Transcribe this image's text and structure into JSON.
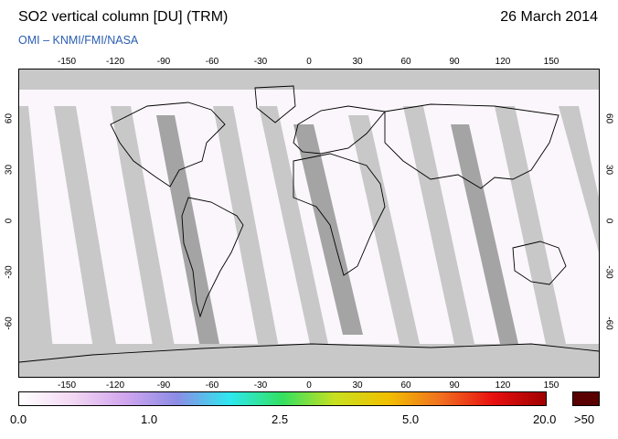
{
  "header": {
    "title": "SO2 vertical column [DU] (TRM)",
    "date": "26 March 2014",
    "credit": "OMI  –  KNMI/FMI/NASA"
  },
  "map": {
    "projection": "equirectangular",
    "lon_range": [
      -180,
      180
    ],
    "lat_range": [
      -90,
      90
    ],
    "lon_ticks": [
      "-150",
      "-120",
      "-90",
      "-60",
      "-30",
      "0",
      "30",
      "60",
      "90",
      "120",
      "150"
    ],
    "lat_ticks": [
      "60",
      "30",
      "0",
      "-30",
      "-60"
    ],
    "no_data_color": "#c8c8c8",
    "background_color": "#fbf6fb",
    "coastline_color": "#000000"
  },
  "colorbar": {
    "labels": [
      "0.0",
      "1.0",
      "2.5",
      "5.0",
      "20.0",
      ">50"
    ],
    "gradient_colors": [
      "#ffffff",
      "#f3d8f3",
      "#d2a6ee",
      "#8c8ce6",
      "#2ee8f0",
      "#33e060",
      "#c8e020",
      "#f0c000",
      "#f07020",
      "#e81010",
      "#a00000"
    ],
    "overflow_color": "#5a0000"
  }
}
